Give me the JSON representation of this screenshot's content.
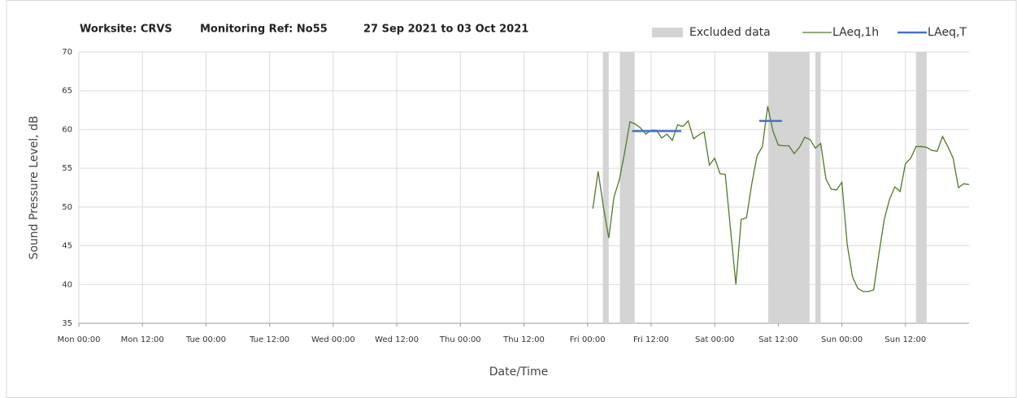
{
  "chart_data": {
    "type": "line",
    "title": [
      "Worksite: CRVS",
      "Monitoring Ref: No55",
      "27 Sep 2021 to 03 Oct 2021"
    ],
    "x_label": "Date/Time",
    "y_label": "Sound Pressure Level, dB",
    "xlim": [
      0,
      168
    ],
    "xticks": [
      {
        "value": 0,
        "label": "Mon 00:00"
      },
      {
        "value": 12,
        "label": "Mon 12:00"
      },
      {
        "value": 24,
        "label": "Tue 00:00"
      },
      {
        "value": 36,
        "label": "Tue 12:00"
      },
      {
        "value": 48,
        "label": "Wed 00:00"
      },
      {
        "value": 60,
        "label": "Wed 12:00"
      },
      {
        "value": 72,
        "label": "Thu 00:00"
      },
      {
        "value": 84,
        "label": "Thu 12:00"
      },
      {
        "value": 96,
        "label": "Fri 00:00"
      },
      {
        "value": 108,
        "label": "Fri 12:00"
      },
      {
        "value": 120,
        "label": "Sat 00:00"
      },
      {
        "value": 132,
        "label": "Sat 12:00"
      },
      {
        "value": 144,
        "label": "Sun 00:00"
      },
      {
        "value": 156,
        "label": "Sun 12:00"
      }
    ],
    "ylim": [
      35,
      70
    ],
    "yticks": [
      35,
      40,
      45,
      50,
      55,
      60,
      65,
      70
    ],
    "grid": true,
    "legend": "top-right",
    "excluded": {
      "name": "Excluded data",
      "color": "#d4d4d4",
      "ranges": [
        [
          98.9,
          100
        ],
        [
          102.1,
          104.9
        ],
        [
          130.1,
          137.9
        ],
        [
          139,
          140
        ],
        [
          158,
          160
        ]
      ]
    },
    "series": [
      {
        "name": "LAeq,1h",
        "color": "#4f7a28",
        "x": [
          97,
          98,
          99,
          100,
          101,
          102,
          103,
          104,
          105,
          106,
          107,
          108,
          109,
          110,
          111,
          112,
          113,
          114,
          115,
          116,
          117,
          118,
          119,
          120,
          121,
          122,
          123,
          124,
          125,
          126,
          127,
          128,
          129,
          130,
          131,
          132,
          133,
          134,
          135,
          136,
          137,
          138,
          139,
          140,
          141,
          142,
          143,
          144,
          145,
          146,
          147,
          148,
          149,
          150,
          151,
          152,
          153,
          154,
          155,
          156,
          157,
          158,
          159,
          160,
          161,
          162,
          163,
          164,
          165,
          166,
          167,
          168
        ],
        "values": [
          49.8,
          54.6,
          50,
          46,
          51.3,
          53.5,
          57,
          61,
          60.7,
          60.2,
          59.4,
          59.9,
          59.9,
          58.9,
          59.4,
          58.6,
          60.6,
          60.4,
          61.1,
          58.8,
          59.3,
          59.7,
          55.4,
          56.3,
          54.3,
          54.2,
          47,
          40,
          48.4,
          48.6,
          53,
          56.6,
          57.8,
          63,
          59.8,
          58,
          57.9,
          57.9,
          56.9,
          57.7,
          59,
          58.7,
          57.6,
          58.2,
          53.6,
          52.3,
          52.2,
          53.2,
          45.2,
          41,
          39.5,
          39.1,
          39.1,
          39.3,
          44,
          48.4,
          51,
          52.6,
          52,
          55.6,
          56.3,
          57.8,
          57.8,
          57.7,
          57.3,
          57.2,
          59.1,
          57.8,
          56.3,
          52.5,
          53,
          52.9
        ]
      },
      {
        "name": "LAeq,T",
        "color": "#4472c4",
        "periods": [
          [
            104.4,
            113.7
          ],
          [
            128.4,
            132.7
          ]
        ],
        "values": [
          59.8,
          61.1
        ]
      }
    ]
  }
}
